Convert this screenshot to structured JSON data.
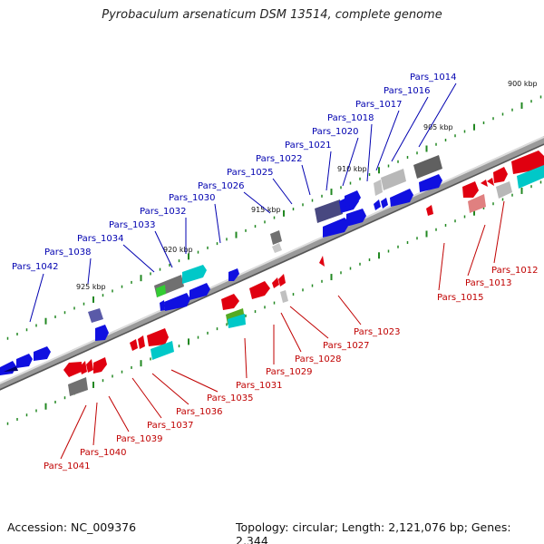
{
  "title": "Pyrobaculum arsenaticum DSM 13514, complete genome",
  "footer": {
    "accession": "Accession: NC_009376",
    "summary": "Topology: circular; Length: 2,121,076 bp; Genes: 2,344"
  },
  "colors": {
    "forward_label": "#0000b0",
    "reverse_label": "#c00000",
    "forward_gene": "#1010e0",
    "reverse_gene": "#e00010",
    "backbone": "#9a9a9a",
    "tick": "#228822"
  },
  "scale_labels": [
    "900 kbp",
    "905 kbp",
    "910 kbp",
    "915 kbp",
    "920 kbp",
    "925 kbp"
  ],
  "forward_labels": [
    "Pars_1014",
    "Pars_1016",
    "Pars_1017",
    "Pars_1018",
    "Pars_1020",
    "Pars_1021",
    "Pars_1022",
    "Pars_1025",
    "Pars_1026",
    "Pars_1030",
    "Pars_1032",
    "Pars_1033",
    "Pars_1034",
    "Pars_1038",
    "Pars_1042"
  ],
  "reverse_labels": [
    "Pars_1012",
    "Pars_1013",
    "Pars_1015",
    "Pars_1023",
    "Pars_1027",
    "Pars_1028",
    "Pars_1029",
    "Pars_1031",
    "Pars_1035",
    "Pars_1036",
    "Pars_1037",
    "Pars_1039",
    "Pars_1040",
    "Pars_1041"
  ]
}
